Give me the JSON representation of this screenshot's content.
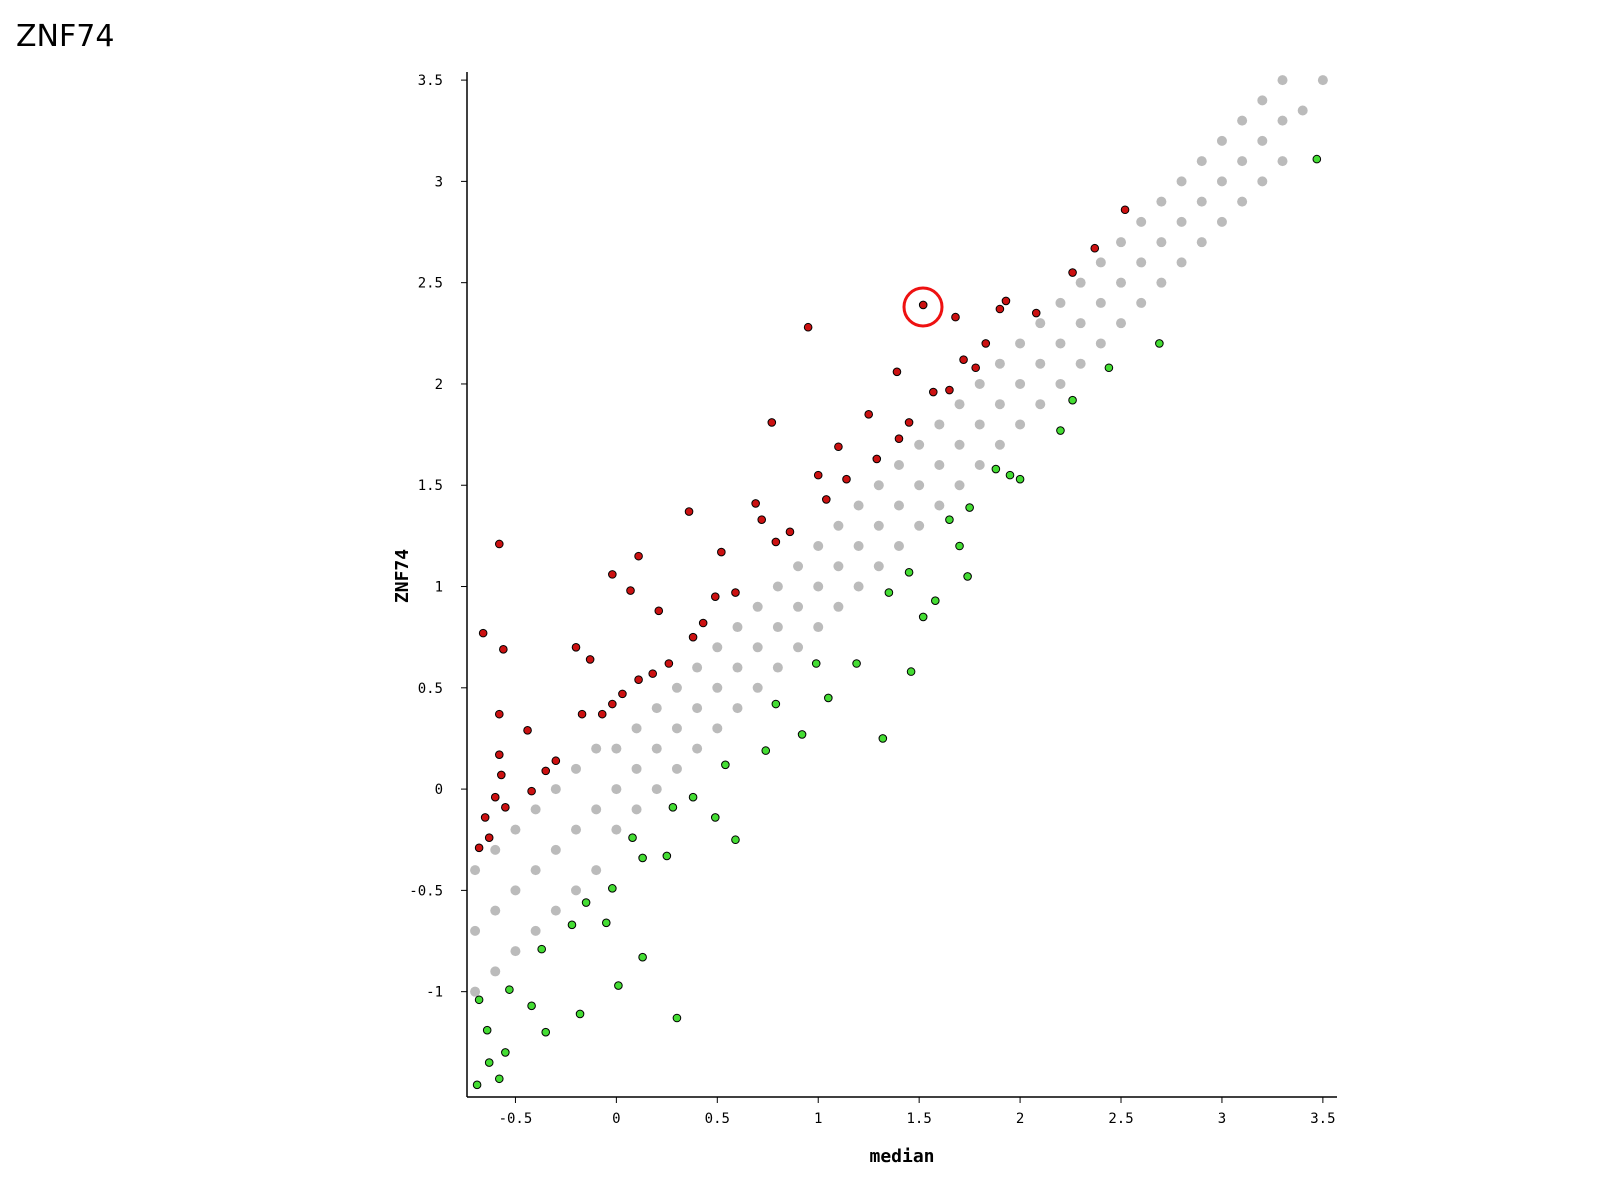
{
  "chart_data": {
    "type": "scatter",
    "title": "ZNF74",
    "xlabel": "median",
    "ylabel": "ZNF74",
    "xlim": [
      -0.74,
      3.57
    ],
    "ylim": [
      -1.52,
      3.54
    ],
    "xticks": [
      -0.5,
      0,
      0.5,
      1,
      1.5,
      2,
      2.5,
      3,
      3.5
    ],
    "yticks": [
      -1,
      -0.5,
      0,
      0.5,
      1,
      1.5,
      2,
      2.5,
      3,
      3.5
    ],
    "series": [
      {
        "color": "#bbbbbb",
        "stroke": "none",
        "x": [
          -0.7,
          -0.7,
          -0.7,
          -0.6,
          -0.6,
          -0.6,
          -0.5,
          -0.5,
          -0.5,
          -0.4,
          -0.4,
          -0.4,
          -0.3,
          -0.3,
          -0.3,
          -0.2,
          -0.2,
          -0.2,
          -0.1,
          -0.1,
          -0.1,
          0,
          0,
          0,
          0.1,
          0.1,
          0.1,
          0.2,
          0.2,
          0.2,
          0.3,
          0.3,
          0.3,
          0.4,
          0.4,
          0.4,
          0.5,
          0.5,
          0.5,
          0.6,
          0.6,
          0.6,
          0.7,
          0.7,
          0.7,
          0.8,
          0.8,
          0.8,
          0.9,
          0.9,
          0.9,
          1,
          1,
          1,
          1.1,
          1.1,
          1.1,
          1.2,
          1.2,
          1.2,
          1.3,
          1.3,
          1.3,
          1.4,
          1.4,
          1.4,
          1.5,
          1.5,
          1.5,
          1.6,
          1.6,
          1.6,
          1.7,
          1.7,
          1.7,
          1.8,
          1.8,
          1.8,
          1.9,
          1.9,
          1.9,
          2,
          2,
          2,
          2.1,
          2.1,
          2.1,
          2.2,
          2.2,
          2.2,
          2.3,
          2.3,
          2.3,
          2.4,
          2.4,
          2.4,
          2.5,
          2.5,
          2.5,
          2.6,
          2.6,
          2.6,
          2.7,
          2.7,
          2.7,
          2.8,
          2.8,
          2.8,
          2.9,
          2.9,
          2.9,
          3,
          3,
          3,
          3.1,
          3.1,
          3.1,
          3.2,
          3.2,
          3.2,
          3.3,
          3.3,
          3.3,
          3.4,
          3.5
        ],
        "values": [
          -1.0,
          -0.7,
          -0.4,
          -0.9,
          -0.6,
          -0.3,
          -0.8,
          -0.5,
          -0.2,
          -0.7,
          -0.4,
          -0.1,
          -0.6,
          -0.3,
          0.0,
          -0.5,
          -0.2,
          0.1,
          -0.4,
          -0.1,
          0.2,
          -0.2,
          0,
          0.2,
          -0.1,
          0.1,
          0.3,
          0,
          0.2,
          0.4,
          0.1,
          0.3,
          0.5,
          0.2,
          0.4,
          0.6,
          0.3,
          0.5,
          0.7,
          0.4,
          0.6,
          0.8,
          0.5,
          0.7,
          0.9,
          0.6,
          0.8,
          1.0,
          0.7,
          0.9,
          1.1,
          0.8,
          1,
          1.2,
          0.9,
          1.1,
          1.3,
          1.0,
          1.2,
          1.4,
          1.1,
          1.3,
          1.5,
          1.2,
          1.4,
          1.6,
          1.3,
          1.5,
          1.7,
          1.4,
          1.6,
          1.8,
          1.5,
          1.7,
          1.9,
          1.6,
          1.8,
          2.0,
          1.7,
          1.9,
          2.1,
          1.8,
          2,
          2.2,
          1.9,
          2.1,
          2.3,
          2.0,
          2.2,
          2.4,
          2.1,
          2.3,
          2.5,
          2.2,
          2.4,
          2.6,
          2.3,
          2.5,
          2.7,
          2.4,
          2.6,
          2.8,
          2.5,
          2.7,
          2.9,
          2.6,
          2.8,
          3.0,
          2.7,
          2.9,
          3.1,
          2.8,
          3,
          3.2,
          2.9,
          3.1,
          3.3,
          3.0,
          3.2,
          3.4,
          3.1,
          3.3,
          3.5,
          3.35,
          3.5
        ]
      },
      {
        "color": "#cc1111",
        "stroke": "#000000",
        "x": [
          1.52,
          0.95,
          2.52,
          2.37,
          2.26,
          1.93,
          1.68,
          1.39,
          0.77,
          0.36,
          0.11,
          -0.02,
          -0.58,
          -0.66,
          -0.56,
          -0.44,
          -0.2,
          -0.13,
          0.07,
          0.21,
          0.52,
          0.69,
          1.0,
          1.1,
          1.25,
          1.45,
          1.57,
          1.72,
          1.83,
          1.9,
          2.08,
          0.26,
          0.38,
          0.59,
          0.79,
          1.14,
          1.29,
          -0.02,
          -0.17,
          -0.3,
          -0.42,
          -0.58,
          -0.6,
          -0.65,
          -0.68,
          -0.63,
          -0.55,
          -0.57,
          -0.58,
          -0.35,
          0.11,
          0.49,
          0.72,
          0.86,
          1.04,
          1.4,
          1.65,
          1.78,
          -0.07,
          0.03,
          0.18,
          0.43
        ],
        "values": [
          2.39,
          2.28,
          2.86,
          2.67,
          2.55,
          2.41,
          2.33,
          2.06,
          1.81,
          1.37,
          1.15,
          1.06,
          1.21,
          0.77,
          0.69,
          0.29,
          0.7,
          0.64,
          0.98,
          0.88,
          1.17,
          1.41,
          1.55,
          1.69,
          1.85,
          1.81,
          1.96,
          2.12,
          2.2,
          2.37,
          2.35,
          0.62,
          0.75,
          0.97,
          1.22,
          1.53,
          1.63,
          0.42,
          0.37,
          0.14,
          -0.01,
          0.17,
          -0.04,
          -0.14,
          -0.29,
          -0.24,
          -0.09,
          0.07,
          0.37,
          0.09,
          0.54,
          0.95,
          1.33,
          1.27,
          1.43,
          1.73,
          1.97,
          2.08,
          0.37,
          0.47,
          0.57,
          0.82
        ]
      },
      {
        "color": "#44dd33",
        "stroke": "#000000",
        "x": [
          3.47,
          2.69,
          2.44,
          2.26,
          2.2,
          1.95,
          1.74,
          1.32,
          1.46,
          1.58,
          1.52,
          1.7,
          1.75,
          1.19,
          1.05,
          0.92,
          0.74,
          0.59,
          0.49,
          0.38,
          0.25,
          0.13,
          -0.02,
          -0.05,
          0.13,
          0.01,
          0.3,
          -0.18,
          -0.35,
          -0.42,
          -0.58,
          -0.69,
          -0.55,
          -0.64,
          -0.53,
          -0.37,
          -0.22,
          -0.15,
          0.08,
          0.28,
          0.54,
          0.79,
          0.99,
          1.35,
          1.45,
          1.65,
          1.88,
          2.0,
          -0.63,
          -0.68
        ],
        "values": [
          3.11,
          2.2,
          2.08,
          1.92,
          1.77,
          1.55,
          1.05,
          0.25,
          0.58,
          0.93,
          0.85,
          1.2,
          1.39,
          0.62,
          0.45,
          0.27,
          0.19,
          -0.25,
          -0.14,
          -0.04,
          -0.33,
          -0.34,
          -0.49,
          -0.66,
          -0.83,
          -0.97,
          -1.13,
          -1.11,
          -1.2,
          -1.07,
          -1.43,
          -1.46,
          -1.3,
          -1.19,
          -0.99,
          -0.79,
          -0.67,
          -0.56,
          -0.24,
          -0.09,
          0.12,
          0.42,
          0.62,
          0.97,
          1.07,
          1.33,
          1.58,
          1.53,
          -1.35,
          -1.04
        ]
      }
    ]
  }
}
